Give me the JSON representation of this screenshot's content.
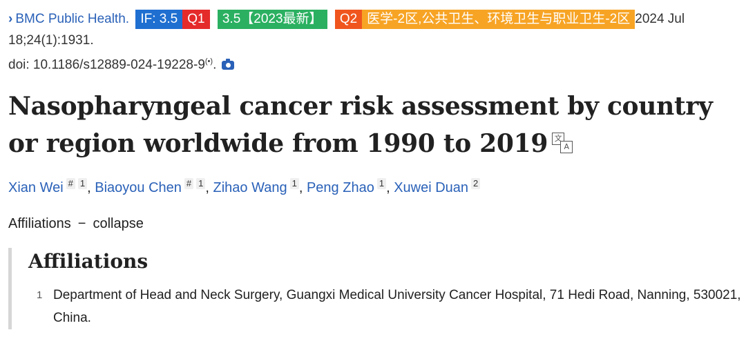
{
  "citation": {
    "journal": "BMC Public Health.",
    "badges": {
      "if": "IF: 3.5",
      "q1": "Q1",
      "if_latest": "3.5【2023最新】",
      "q2": "Q2",
      "zone": "医学-2区,公共卫生、环境卫生与职业卫生-2区"
    },
    "date": "2024 Jul 18;24(1):1931.",
    "doi": "doi: 10.1186/s12889-024-19228-9",
    "podcast_symbol": "(•)",
    "camera_icon": "camera-icon"
  },
  "title": "Nasopharyngeal cancer risk assessment by country or region worldwide from 1990 to 2019",
  "authors": [
    {
      "name": "Xian Wei",
      "marks": [
        "#",
        "1"
      ]
    },
    {
      "name": "Biaoyou Chen",
      "marks": [
        "#",
        "1"
      ]
    },
    {
      "name": "Zihao Wang",
      "marks": [
        "1"
      ]
    },
    {
      "name": "Peng Zhao",
      "marks": [
        "1"
      ]
    },
    {
      "name": "Xuwei Duan",
      "marks": [
        "2"
      ]
    }
  ],
  "affiliations_toggle": {
    "label": "Affiliations",
    "dash": "−",
    "action": "collapse"
  },
  "affiliations": {
    "heading": "Affiliations",
    "items": [
      {
        "num": "1",
        "text": "Department of Head and Neck Surgery, Guangxi Medical University Cancer Hospital, 71 Hedi Road, Nanning, 530021, China."
      }
    ]
  },
  "colors": {
    "link": "#2a61b8",
    "if_badge": "#1f6fd1",
    "q1_badge": "#e52a2a",
    "green_badge": "#2bb061",
    "q2_badge": "#f0551e",
    "zone_badge": "#f7a425"
  }
}
